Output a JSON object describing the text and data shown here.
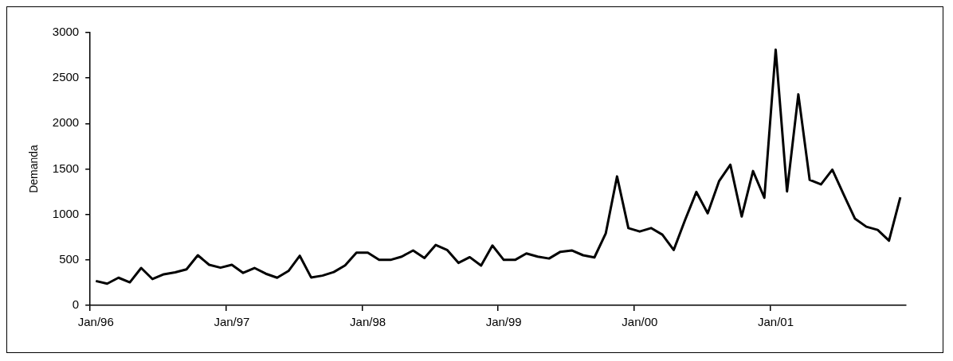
{
  "chart_data": {
    "type": "line",
    "ylabel": "Demanda",
    "categories": [
      "Jan/96",
      null,
      null,
      null,
      null,
      null,
      null,
      null,
      null,
      null,
      null,
      null,
      "Jan/97",
      null,
      null,
      null,
      null,
      null,
      null,
      null,
      null,
      null,
      null,
      null,
      "Jan/98",
      null,
      null,
      null,
      null,
      null,
      null,
      null,
      null,
      null,
      null,
      null,
      "Jan/99",
      null,
      null,
      null,
      null,
      null,
      null,
      null,
      null,
      null,
      null,
      null,
      "Jan/00",
      null,
      null,
      null,
      null,
      null,
      null,
      null,
      null,
      null,
      null,
      null,
      "Jan/01",
      null,
      null,
      null,
      null,
      null,
      null,
      null,
      null,
      null,
      null,
      null
    ],
    "series": [
      {
        "color": "#000000",
        "values": [
          268,
          238,
          304,
          253,
          411,
          289,
          342,
          363,
          396,
          551,
          446,
          414,
          446,
          357,
          411,
          348,
          304,
          378,
          545,
          307,
          327,
          366,
          440,
          580,
          580,
          500,
          500,
          536,
          604,
          521,
          664,
          610,
          467,
          530,
          437,
          658,
          500,
          500,
          571,
          536,
          515,
          589,
          604,
          551,
          527,
          790,
          1418,
          850,
          812,
          850,
          777,
          609,
          938,
          1247,
          1012,
          1365,
          1547,
          977,
          1477,
          1183,
          2813,
          1253,
          2321,
          1380,
          1330,
          1492,
          1218,
          953,
          865,
          830,
          712,
          1189
        ]
      }
    ],
    "ylim": [
      0,
      3000
    ],
    "yticks": [
      0,
      500,
      1000,
      1500,
      2000,
      2500,
      3000
    ],
    "grid": false,
    "legend": false,
    "marker": "none",
    "line_style": "solid"
  }
}
